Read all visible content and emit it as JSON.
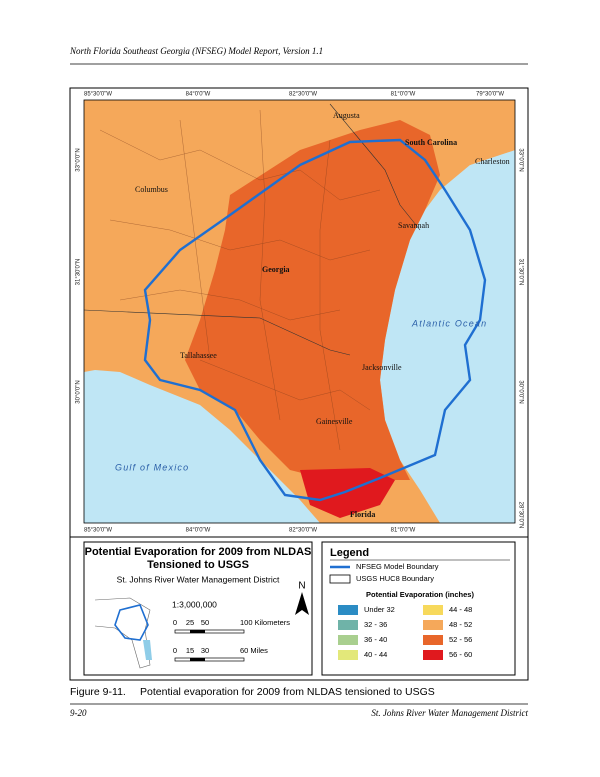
{
  "header": "North Florida Southeast Georgia (NFSEG) Model Report, Version 1.1",
  "map": {
    "top_ticks": [
      "85°30'0\"W",
      "84°0'0\"W",
      "82°30'0\"W",
      "81°0'0\"W",
      "79°30'0\"W"
    ],
    "bottom_ticks": [
      "85°30'0\"W",
      "84°0'0\"W",
      "82°30'0\"W",
      "81°0'0\"W"
    ],
    "left_ticks": [
      "33°0'0\"N",
      "31°30'0\"N",
      "30°0'0\"N"
    ],
    "right_ticks": [
      "33°0'0\"N",
      "31°30'0\"N",
      "30°0'0\"N",
      "28°30'0\"N"
    ],
    "places": [
      "Augusta",
      "South Carolina",
      "Charleston",
      "Columbus",
      "Savannah",
      "Georgia",
      "Atlantic Ocean",
      "Tallahassee",
      "Jacksonville",
      "Gainesville",
      "Gulf of Mexico",
      "Florida"
    ]
  },
  "title_box": {
    "title_line1": "Potential Evaporation for 2009 from NLDAS",
    "title_line2": "Tensioned to USGS",
    "subtitle": "St. Johns River Water Management District",
    "north": "N",
    "scale": "1:3,000,000",
    "km_ticks": [
      "0",
      "25",
      "50",
      "100 Kilometers"
    ],
    "mile_ticks": [
      "0",
      "15",
      "30",
      "60 Miles"
    ]
  },
  "legend": {
    "title": "Legend",
    "items": [
      "NFSEG Model Boundary",
      "USGS HUC8 Boundary"
    ],
    "subtitle": "Potential Evaporation (inches)",
    "classes": [
      {
        "label": "Under 32",
        "color": "#2b8cc4"
      },
      {
        "label": "32 - 36",
        "color": "#6fb3a8"
      },
      {
        "label": "36 - 40",
        "color": "#a9cf8f"
      },
      {
        "label": "40 - 44",
        "color": "#e3e87a"
      },
      {
        "label": "44 - 48",
        "color": "#f7d95c"
      },
      {
        "label": "48 - 52",
        "color": "#f5a85a"
      },
      {
        "label": "52 - 56",
        "color": "#e8662a"
      },
      {
        "label": "56 - 60",
        "color": "#e0191e"
      }
    ]
  },
  "caption": {
    "number": "Figure 9-11.",
    "text": "Potential evaporation for 2009 from NLDAS tensioned to USGS"
  },
  "footer": {
    "left": "9-20",
    "right": "St. Johns River Water Management District"
  }
}
